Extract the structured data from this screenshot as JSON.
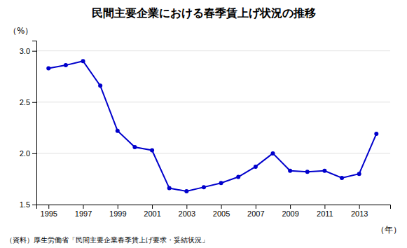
{
  "chart_data": {
    "type": "line",
    "title": "民間主要企業における春季賃上げ状況の推移",
    "ylabel": "（%）",
    "xlabel": "（年）",
    "annotations": [
      "（資料）厚生労働省「民間主要企業春季賃上げ要求・妥結状況」"
    ],
    "x": [
      1995,
      1996,
      1997,
      1998,
      1999,
      2000,
      2001,
      2002,
      2003,
      2004,
      2005,
      2006,
      2007,
      2008,
      2009,
      2010,
      2011,
      2012,
      2013,
      2014
    ],
    "values": [
      2.83,
      2.86,
      2.9,
      2.66,
      2.22,
      2.06,
      2.03,
      1.66,
      1.63,
      1.67,
      1.71,
      1.77,
      1.87,
      2.0,
      1.83,
      1.82,
      1.83,
      1.76,
      1.8,
      2.19
    ],
    "color": "#0000CC",
    "marker": "circle",
    "line_style": "solid",
    "xlim": [
      1994.3,
      2014.8
    ],
    "xticks": [
      1995,
      1997,
      1999,
      2001,
      2003,
      2005,
      2007,
      2009,
      2011,
      2013
    ],
    "ylim": [
      1.5,
      3.1
    ],
    "yticks": [
      1.5,
      {
        "value": 2.0,
        "label": "2.0"
      },
      {
        "value": 2.5,
        "label": "2.5"
      },
      {
        "value": 3.0,
        "label": "3.0"
      }
    ],
    "grid": true
  }
}
